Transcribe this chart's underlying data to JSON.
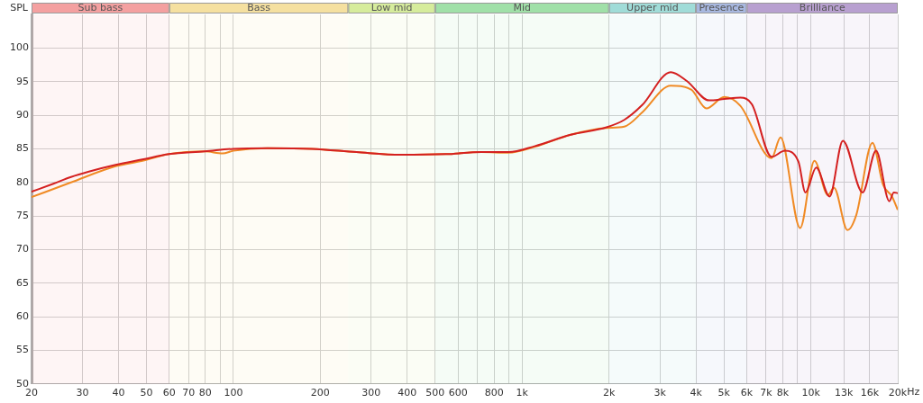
{
  "chart_data": {
    "type": "line",
    "ylabel": "SPL",
    "log": "x",
    "grid": true,
    "legend": false,
    "marker": "none",
    "line_style": "solid",
    "xlim": [
      20,
      20000
    ],
    "ylim": [
      50,
      105
    ],
    "xticks": [
      20,
      30,
      40,
      50,
      60,
      70,
      80,
      {
        "value": 90,
        "label": null
      },
      100,
      200,
      300,
      400,
      500,
      600,
      {
        "value": 700,
        "label": null
      },
      800,
      {
        "value": 900,
        "label": null
      },
      {
        "value": 1000,
        "label": "1k"
      },
      {
        "value": 2000,
        "label": "2k"
      },
      {
        "value": 3000,
        "label": "3k"
      },
      {
        "value": 4000,
        "label": "4k"
      },
      {
        "value": 5000,
        "label": "5k"
      },
      {
        "value": 6000,
        "label": "6k"
      },
      {
        "value": 7000,
        "label": "7k"
      },
      {
        "value": 8000,
        "label": "8k"
      },
      {
        "value": 9000,
        "label": null
      },
      {
        "value": 10000,
        "label": "10k"
      },
      {
        "value": 13000,
        "label": "13k"
      },
      {
        "value": 16000,
        "label": "16k"
      },
      {
        "value": 20000,
        "label": "20k"
      }
    ],
    "xlabel": "Hz",
    "yticks": [
      50,
      55,
      60,
      65,
      70,
      75,
      80,
      85,
      90,
      95,
      100
    ],
    "bands": [
      {
        "axis": "x",
        "from": 20,
        "to": 60,
        "label": "Sub bass",
        "color": "#f4a0a0"
      },
      {
        "axis": "x",
        "from": 60,
        "to": 250,
        "label": "Bass",
        "color": "#f5e0a0"
      },
      {
        "axis": "x",
        "from": 250,
        "to": 500,
        "label": "Low mid",
        "color": "#d6ec9c"
      },
      {
        "axis": "x",
        "from": 500,
        "to": 2000,
        "label": "Mid",
        "color": "#a0e0a8"
      },
      {
        "axis": "x",
        "from": 2000,
        "to": 4000,
        "label": "Upper mid",
        "color": "#a0dcd8"
      },
      {
        "axis": "x",
        "from": 4000,
        "to": 6000,
        "label": "Presence",
        "color": "#a8b8e0"
      },
      {
        "axis": "x",
        "from": 6000,
        "to": 20000,
        "label": "Brilliance",
        "color": "#b8a0d0"
      }
    ],
    "series": [
      {
        "color": "#d42020",
        "x": [
          20,
          23.8,
          27.4,
          31.6,
          39.1,
          48.4,
          59.9,
          79.6,
          100,
          131,
          187,
          267,
          381,
          544,
          723,
          896,
          1109,
          1474,
          1960,
          2259,
          2605,
          3271,
          3718,
          4443,
          5013,
          5699,
          6252,
          7311,
          8130,
          9057,
          9577,
          10440,
          11610,
          12910,
          15110,
          16820,
          18700,
          19380,
          20000
        ],
        "values": [
          78.6,
          79.8,
          80.8,
          81.6,
          82.6,
          83.4,
          84.2,
          84.6,
          85.0,
          85.1,
          85.0,
          84.5,
          84.1,
          84.2,
          84.5,
          84.5,
          85.4,
          87.1,
          88.2,
          89.3,
          91.5,
          96.4,
          95.1,
          92.2,
          92.4,
          92.6,
          91.6,
          83.8,
          84.7,
          83.1,
          78.5,
          82.2,
          77.9,
          86.2,
          78.5,
          84.7,
          77.2,
          78.5,
          78.4
        ]
      },
      {
        "color": "#f08a24",
        "x": [
          20,
          27.4,
          39.1,
          48.4,
          59.9,
          79.6,
          91.8,
          100,
          131,
          187,
          267,
          381,
          544,
          723,
          896,
          1109,
          1474,
          1960,
          2259,
          2605,
          3271,
          3853,
          4348,
          5013,
          5699,
          7311,
          7852,
          9184,
          10290,
          11460,
          12030,
          13390,
          14380,
          16340,
          17800,
          19100,
          20000
        ],
        "values": [
          77.8,
          80.0,
          82.4,
          83.2,
          84.2,
          84.6,
          84.3,
          84.7,
          85.1,
          85.0,
          84.5,
          84.1,
          84.2,
          84.5,
          84.4,
          85.3,
          87.1,
          88.1,
          88.3,
          90.4,
          94.4,
          93.8,
          91.0,
          92.7,
          91.4,
          83.6,
          86.7,
          73.2,
          83.2,
          78.1,
          79.2,
          72.9,
          75.2,
          85.9,
          79.6,
          77.9,
          75.9
        ]
      }
    ]
  }
}
